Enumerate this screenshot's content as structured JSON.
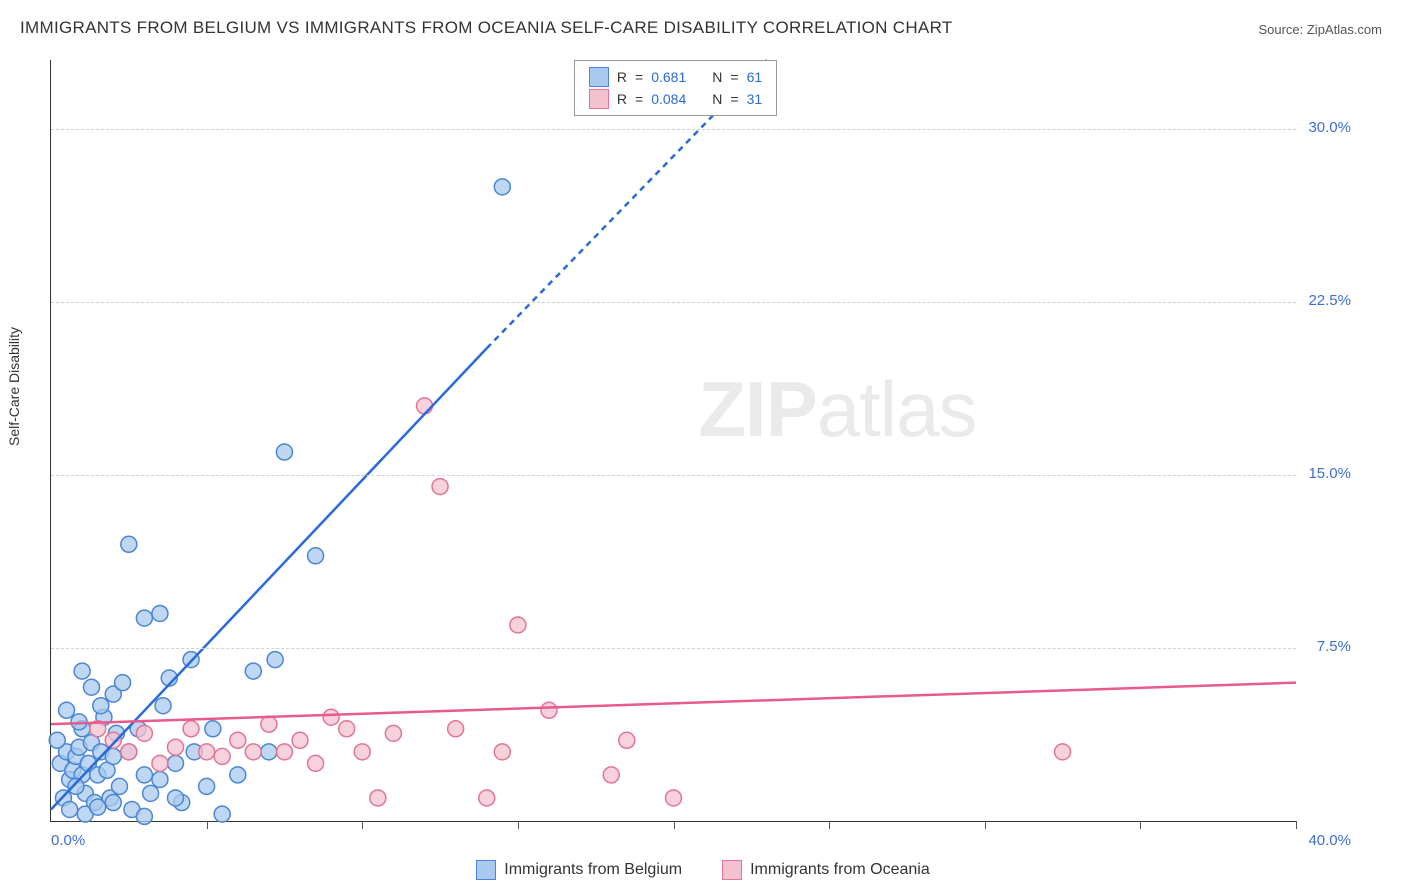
{
  "title": "IMMIGRANTS FROM BELGIUM VS IMMIGRANTS FROM OCEANIA SELF-CARE DISABILITY CORRELATION CHART",
  "source_prefix": "Source: ",
  "source_name": "ZipAtlas.com",
  "yaxis_title": "Self-Care Disability",
  "watermark_zip": "ZIP",
  "watermark_atlas": "atlas",
  "chart": {
    "type": "scatter-correlation",
    "xlim": [
      0,
      40
    ],
    "ylim": [
      0,
      33
    ],
    "xtick_step": 5,
    "ygrid_values": [
      7.5,
      15.0,
      22.5,
      30.0
    ],
    "ygrid_labels": [
      "7.5%",
      "15.0%",
      "22.5%",
      "30.0%"
    ],
    "xmin_label": "0.0%",
    "xmax_label": "40.0%",
    "background_color": "#ffffff",
    "grid_color": "#d0d0d0",
    "axis_color": "#333333",
    "tick_label_color": "#3b6fd6",
    "marker_radius": 8,
    "marker_stroke_width": 1.5,
    "trendline_width": 2.5,
    "series": [
      {
        "name": "Immigrants from Belgium",
        "fill": "#a9c9ee",
        "stroke": "#4a86d6",
        "trend_color": "#2a6ad8",
        "trend": {
          "x1": 0,
          "y1": 0.5,
          "x2": 14,
          "y2": 20.5,
          "x3": 23,
          "y3": 33
        },
        "R": "0.681",
        "N": "61",
        "points": [
          [
            0.3,
            2.5
          ],
          [
            0.5,
            3.0
          ],
          [
            0.6,
            1.8
          ],
          [
            0.7,
            2.2
          ],
          [
            0.8,
            2.8
          ],
          [
            0.9,
            3.2
          ],
          [
            1.0,
            2.0
          ],
          [
            1.0,
            4.0
          ],
          [
            1.1,
            1.2
          ],
          [
            1.2,
            2.5
          ],
          [
            1.3,
            3.4
          ],
          [
            1.4,
            0.8
          ],
          [
            1.5,
            2.0
          ],
          [
            1.6,
            3.0
          ],
          [
            1.7,
            4.5
          ],
          [
            1.8,
            2.2
          ],
          [
            1.9,
            1.0
          ],
          [
            2.0,
            5.5
          ],
          [
            2.0,
            2.8
          ],
          [
            2.2,
            1.5
          ],
          [
            2.3,
            6.0
          ],
          [
            2.5,
            3.0
          ],
          [
            2.6,
            0.5
          ],
          [
            2.8,
            4.0
          ],
          [
            3.0,
            8.8
          ],
          [
            3.0,
            2.0
          ],
          [
            3.2,
            1.2
          ],
          [
            3.5,
            9.0
          ],
          [
            3.6,
            5.0
          ],
          [
            3.8,
            6.2
          ],
          [
            4.0,
            2.5
          ],
          [
            4.2,
            0.8
          ],
          [
            4.5,
            7.0
          ],
          [
            4.6,
            3.0
          ],
          [
            5.0,
            1.5
          ],
          [
            5.2,
            4.0
          ],
          [
            5.5,
            0.3
          ],
          [
            6.0,
            2.0
          ],
          [
            6.5,
            6.5
          ],
          [
            7.0,
            3.0
          ],
          [
            7.2,
            7.0
          ],
          [
            7.5,
            16.0
          ],
          [
            8.5,
            11.5
          ],
          [
            2.5,
            12.0
          ],
          [
            1.0,
            6.5
          ],
          [
            1.3,
            5.8
          ],
          [
            0.5,
            4.8
          ],
          [
            0.4,
            1.0
          ],
          [
            0.6,
            0.5
          ],
          [
            0.8,
            1.5
          ],
          [
            1.1,
            0.3
          ],
          [
            1.5,
            0.6
          ],
          [
            2.0,
            0.8
          ],
          [
            3.5,
            1.8
          ],
          [
            4.0,
            1.0
          ],
          [
            3.0,
            0.2
          ],
          [
            0.2,
            3.5
          ],
          [
            0.9,
            4.3
          ],
          [
            1.6,
            5.0
          ],
          [
            2.1,
            3.8
          ],
          [
            14.5,
            27.5
          ]
        ]
      },
      {
        "name": "Immigrants from Oceania",
        "fill": "#f4c2cf",
        "stroke": "#e27596",
        "trend_color": "#e85a8a",
        "trend": {
          "x1": 0,
          "y1": 4.2,
          "x2": 40,
          "y2": 6.0
        },
        "R": "0.084",
        "N": "31",
        "points": [
          [
            2.0,
            3.5
          ],
          [
            2.5,
            3.0
          ],
          [
            3.0,
            3.8
          ],
          [
            3.5,
            2.5
          ],
          [
            4.0,
            3.2
          ],
          [
            4.5,
            4.0
          ],
          [
            5.0,
            3.0
          ],
          [
            5.5,
            2.8
          ],
          [
            6.0,
            3.5
          ],
          [
            6.5,
            3.0
          ],
          [
            7.0,
            4.2
          ],
          [
            7.5,
            3.0
          ],
          [
            8.0,
            3.5
          ],
          [
            8.5,
            2.5
          ],
          [
            9.0,
            4.5
          ],
          [
            9.5,
            4.0
          ],
          [
            10.0,
            3.0
          ],
          [
            10.5,
            1.0
          ],
          [
            11.0,
            3.8
          ],
          [
            12.0,
            18.0
          ],
          [
            12.5,
            14.5
          ],
          [
            13.0,
            4.0
          ],
          [
            14.0,
            1.0
          ],
          [
            14.5,
            3.0
          ],
          [
            15.0,
            8.5
          ],
          [
            16.0,
            4.8
          ],
          [
            18.0,
            2.0
          ],
          [
            18.5,
            3.5
          ],
          [
            20.0,
            1.0
          ],
          [
            32.5,
            3.0
          ],
          [
            1.5,
            4.0
          ]
        ]
      }
    ]
  },
  "top_legend": {
    "r_label": "R",
    "n_label": "N",
    "eq": "="
  },
  "bottom_legend": {
    "items": [
      {
        "label": "Immigrants from Belgium",
        "fill": "#a9c9ee",
        "stroke": "#4a86d6"
      },
      {
        "label": "Immigrants from Oceania",
        "fill": "#f4c2cf",
        "stroke": "#e27596"
      }
    ]
  }
}
